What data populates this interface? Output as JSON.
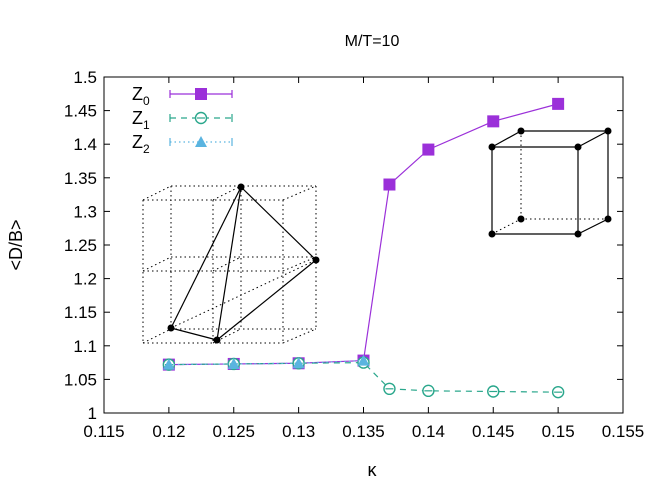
{
  "chart_data": {
    "type": "line",
    "title": "M/T=10",
    "xlabel": "κ",
    "ylabel": "<D/B>",
    "xlim": [
      0.115,
      0.155
    ],
    "ylim": [
      1.0,
      1.5
    ],
    "x_ticks": [
      "0.115",
      "0.12",
      "0.125",
      "0.13",
      "0.135",
      "0.14",
      "0.145",
      "0.15",
      "0.155"
    ],
    "y_ticks": [
      "1",
      "1.05",
      "1.1",
      "1.15",
      "1.2",
      "1.25",
      "1.3",
      "1.35",
      "1.4",
      "1.45",
      "1.5"
    ],
    "legend_position": "top-left",
    "grid": false,
    "series": [
      {
        "name": "Z",
        "subscript": "0",
        "color": "#9b30d9",
        "marker": "filled-square",
        "line_style": "solid",
        "x": [
          0.12,
          0.125,
          0.13,
          0.135,
          0.137,
          0.14,
          0.145,
          0.15
        ],
        "y": [
          1.072,
          1.073,
          1.074,
          1.078,
          1.34,
          1.392,
          1.434,
          1.46
        ]
      },
      {
        "name": "Z",
        "subscript": "1",
        "color": "#2aa78c",
        "marker": "open-circle",
        "line_style": "dashed",
        "x": [
          0.12,
          0.125,
          0.13,
          0.135,
          0.137,
          0.14,
          0.145,
          0.15
        ],
        "y": [
          1.072,
          1.073,
          1.074,
          1.075,
          1.036,
          1.033,
          1.032,
          1.031
        ]
      },
      {
        "name": "Z",
        "subscript": "2",
        "color": "#5ab4e0",
        "marker": "filled-triangle",
        "line_style": "dotted",
        "x": [
          0.12,
          0.125,
          0.13,
          0.135
        ],
        "y": [
          1.072,
          1.073,
          1.074,
          1.078
        ]
      }
    ],
    "insets": [
      {
        "name": "tetrahedron-in-cube-lattice",
        "description_shape": "tetrahedron"
      },
      {
        "name": "cube",
        "description_shape": "cube"
      }
    ]
  }
}
